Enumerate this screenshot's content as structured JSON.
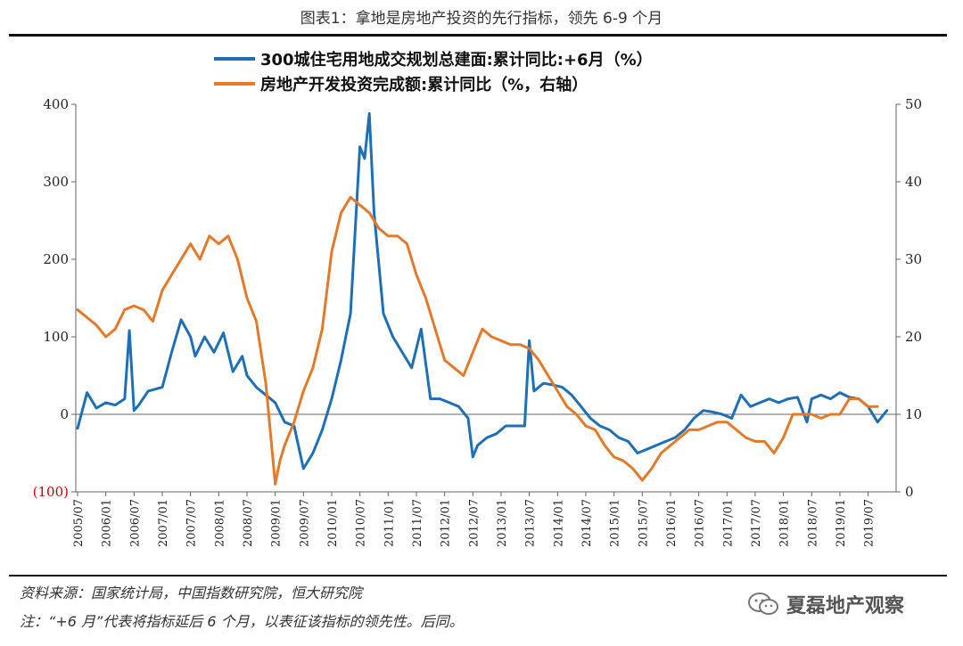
{
  "figure_title": "图表1：拿地是房地产投资的先行指标，领先 6-9 个月",
  "source_text": "资料来源：国家统计局，中国指数研究院，恒大研究院",
  "note_text": "注：“+6 月”代表将指标延后 6 个月，以表征该指标的领先性。后同。",
  "watermark_text": "夏磊地产观察",
  "watermark_icon": "wechat-icon",
  "colors": {
    "series_blue": "#1f6fb5",
    "series_orange": "#e37a2a",
    "negative_tick": "#c00000"
  },
  "chart_data": {
    "type": "line",
    "legend_position": "top",
    "grid": false,
    "y_left": {
      "range": [
        -100,
        400
      ],
      "ticks": [
        -100,
        0,
        100,
        200,
        300,
        400
      ],
      "tick_labels": [
        "(100)",
        "0",
        "100",
        "200",
        "300",
        "400"
      ]
    },
    "y_right": {
      "range": [
        0,
        50
      ],
      "ticks": [
        0,
        10,
        20,
        30,
        40,
        50
      ],
      "tick_labels": [
        "0",
        "10",
        "20",
        "30",
        "40",
        "50"
      ]
    },
    "x_ticks": [
      "2005/07",
      "2006/01",
      "2006/07",
      "2007/01",
      "2007/07",
      "2008/01",
      "2008/07",
      "2009/01",
      "2009/07",
      "2010/01",
      "2010/07",
      "2011/01",
      "2011/07",
      "2012/01",
      "2012/07",
      "2013/01",
      "2013/07",
      "2014/01",
      "2014/07",
      "2015/01",
      "2015/07",
      "2016/01",
      "2016/07",
      "2017/01",
      "2017/07",
      "2018/01",
      "2018/07",
      "2019/01",
      "2019/07"
    ],
    "series": [
      {
        "name": "300城住宅用地成交规划总建面:累计同比:+6月（%）",
        "axis": "left",
        "x": [
          "2005/07",
          "2005/09",
          "2005/11",
          "2006/01",
          "2006/03",
          "2006/05",
          "2006/06",
          "2006/07",
          "2006/08",
          "2006/10",
          "2007/01",
          "2007/03",
          "2007/05",
          "2007/07",
          "2007/08",
          "2007/10",
          "2007/12",
          "2008/02",
          "2008/04",
          "2008/06",
          "2008/07",
          "2008/09",
          "2008/11",
          "2009/01",
          "2009/03",
          "2009/05",
          "2009/07",
          "2009/09",
          "2009/11",
          "2010/01",
          "2010/03",
          "2010/05",
          "2010/07",
          "2010/08",
          "2010/09",
          "2010/10",
          "2010/12",
          "2011/02",
          "2011/04",
          "2011/06",
          "2011/08",
          "2011/10",
          "2011/12",
          "2012/02",
          "2012/04",
          "2012/06",
          "2012/07",
          "2012/08",
          "2012/10",
          "2012/12",
          "2013/02",
          "2013/04",
          "2013/06",
          "2013/07",
          "2013/08",
          "2013/10",
          "2013/12",
          "2014/02",
          "2014/04",
          "2014/06",
          "2014/08",
          "2014/10",
          "2014/12",
          "2015/02",
          "2015/04",
          "2015/06",
          "2015/08",
          "2015/10",
          "2015/12",
          "2016/02",
          "2016/04",
          "2016/06",
          "2016/08",
          "2016/10",
          "2016/12",
          "2017/02",
          "2017/04",
          "2017/06",
          "2017/08",
          "2017/10",
          "2017/12",
          "2018/02",
          "2018/04",
          "2018/06",
          "2018/07",
          "2018/09",
          "2018/11",
          "2019/01",
          "2019/03",
          "2019/05",
          "2019/07",
          "2019/09",
          "2019/11"
        ],
        "values": [
          -18,
          28,
          8,
          15,
          12,
          20,
          108,
          5,
          12,
          30,
          35,
          80,
          122,
          100,
          75,
          100,
          80,
          105,
          55,
          75,
          50,
          35,
          25,
          15,
          -10,
          -15,
          -70,
          -50,
          -20,
          20,
          70,
          130,
          345,
          330,
          388,
          260,
          130,
          100,
          80,
          60,
          110,
          20,
          20,
          15,
          10,
          -5,
          -55,
          -40,
          -30,
          -25,
          -15,
          -15,
          -15,
          95,
          30,
          40,
          38,
          35,
          25,
          10,
          -5,
          -15,
          -20,
          -30,
          -35,
          -50,
          -45,
          -40,
          -35,
          -30,
          -20,
          -5,
          5,
          3,
          0,
          -5,
          25,
          10,
          15,
          20,
          15,
          20,
          22,
          -10,
          20,
          25,
          20,
          28,
          22,
          20,
          10,
          -10,
          5
        ]
      },
      {
        "name": "房地产开发投资完成额:累计同比（%，右轴）",
        "axis": "right",
        "x": [
          "2005/07",
          "2005/09",
          "2005/11",
          "2006/01",
          "2006/03",
          "2006/05",
          "2006/07",
          "2006/09",
          "2006/11",
          "2007/01",
          "2007/03",
          "2007/05",
          "2007/07",
          "2007/09",
          "2007/11",
          "2008/01",
          "2008/03",
          "2008/05",
          "2008/07",
          "2008/09",
          "2008/11",
          "2009/01",
          "2009/02",
          "2009/03",
          "2009/05",
          "2009/07",
          "2009/09",
          "2009/11",
          "2010/01",
          "2010/03",
          "2010/05",
          "2010/07",
          "2010/09",
          "2010/11",
          "2011/01",
          "2011/03",
          "2011/05",
          "2011/07",
          "2011/09",
          "2011/11",
          "2012/01",
          "2012/03",
          "2012/05",
          "2012/07",
          "2012/09",
          "2012/11",
          "2013/01",
          "2013/03",
          "2013/05",
          "2013/07",
          "2013/09",
          "2013/11",
          "2014/01",
          "2014/03",
          "2014/05",
          "2014/07",
          "2014/09",
          "2014/11",
          "2015/01",
          "2015/03",
          "2015/05",
          "2015/07",
          "2015/09",
          "2015/11",
          "2016/01",
          "2016/03",
          "2016/05",
          "2016/07",
          "2016/09",
          "2016/11",
          "2017/01",
          "2017/03",
          "2017/05",
          "2017/07",
          "2017/09",
          "2017/11",
          "2018/01",
          "2018/03",
          "2018/05",
          "2018/07",
          "2018/09",
          "2018/11",
          "2019/01",
          "2019/03",
          "2019/05",
          "2019/07",
          "2019/09"
        ],
        "values": [
          23.5,
          22.5,
          21.5,
          20,
          21,
          23.5,
          24,
          23.5,
          22,
          26,
          28,
          30,
          32,
          30,
          33,
          32,
          33,
          30,
          25,
          22,
          14,
          1,
          4,
          6,
          9,
          13,
          16,
          21,
          31,
          36,
          38,
          37,
          36,
          34,
          33,
          33,
          32,
          28,
          25,
          21,
          17,
          16,
          15,
          18,
          21,
          20,
          19.5,
          19,
          19,
          18.5,
          17,
          15,
          13,
          11,
          10,
          8.5,
          8,
          6,
          4.5,
          4,
          3,
          1.5,
          3,
          5,
          6,
          7,
          8,
          8,
          8.5,
          9,
          9,
          8,
          7,
          6.5,
          6.5,
          5,
          7,
          10,
          10,
          10,
          9.5,
          10,
          10,
          12,
          12,
          11,
          11
        ]
      }
    ]
  }
}
